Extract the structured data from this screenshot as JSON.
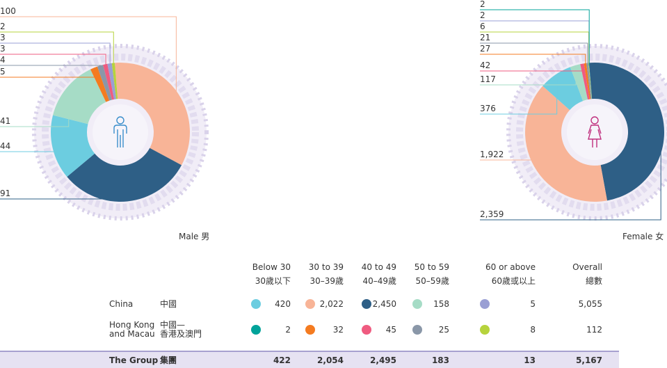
{
  "chart_data": [
    {
      "type": "pie",
      "label": "Male 男",
      "values": [
        100,
        91,
        44,
        41,
        5,
        4,
        3,
        3,
        2
      ],
      "colors": [
        "#f8b497",
        "#2e5f86",
        "#6ccde0",
        "#a6dcc6",
        "#f47b20",
        "#8a97a8",
        "#ef5b80",
        "#9a9fd4",
        "#b6d33c"
      ]
    },
    {
      "type": "pie",
      "label": "Female 女",
      "values": [
        2359,
        1922,
        376,
        117,
        42,
        27,
        21,
        6,
        2,
        2
      ],
      "value_labels": [
        "2,359",
        "1,922",
        "376",
        "117",
        "42",
        "27",
        "21",
        "6",
        "2",
        "2"
      ],
      "colors": [
        "#2e5f86",
        "#f8b497",
        "#6ccde0",
        "#a6dcc6",
        "#ef5b80",
        "#f47b20",
        "#8a97a8",
        "#b6d33c",
        "#9a9fd4",
        "#00a39a"
      ]
    }
  ],
  "table": {
    "columns": [
      {
        "en": "Below 30",
        "zh": "30歲以下"
      },
      {
        "en": "30 to 39",
        "zh": "30–39歲"
      },
      {
        "en": "40 to 49",
        "zh": "40–49歲"
      },
      {
        "en": "50 to 59",
        "zh": "50–59歲"
      },
      {
        "en": "60 or above",
        "zh": "60歲或以上"
      },
      {
        "en": "Overall",
        "zh": "總數"
      }
    ],
    "rows": [
      {
        "en": [
          "China"
        ],
        "zh": [
          "中國"
        ],
        "values": [
          "420",
          "2,022",
          "2,450",
          "158",
          "5",
          "5,055"
        ],
        "dot_colors": [
          "#6ccde0",
          "#f8b497",
          "#2e5f86",
          "#a6dcc6",
          "#9a9fd4"
        ]
      },
      {
        "en": [
          "Hong Kong",
          "and Macau"
        ],
        "zh": [
          "中國—",
          "香港及澳門"
        ],
        "values": [
          "2",
          "32",
          "45",
          "25",
          "8",
          "112"
        ],
        "dot_colors": [
          "#00a39a",
          "#f47b20",
          "#ef5b80",
          "#8a97a8",
          "#b6d33c"
        ]
      },
      {
        "en": [
          "The Group"
        ],
        "zh": [
          "集團"
        ],
        "values": [
          "422",
          "2,054",
          "2,495",
          "183",
          "13",
          "5,167"
        ]
      }
    ]
  }
}
